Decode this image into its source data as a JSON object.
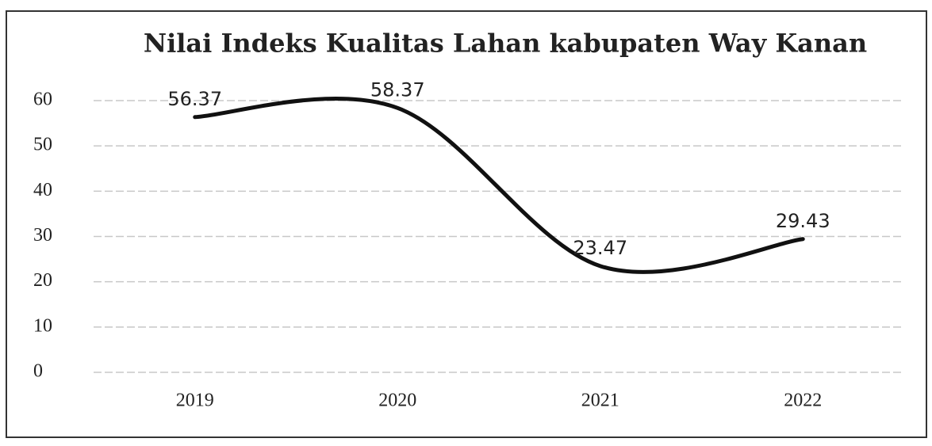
{
  "chart_data": {
    "type": "line",
    "title": "Nilai Indeks Kualitas Lahan kabupaten Way Kanan",
    "categories": [
      "2019",
      "2020",
      "2021",
      "2022"
    ],
    "values": [
      56.37,
      58.37,
      23.47,
      29.43
    ],
    "color": "#111111",
    "ylim": [
      0,
      60
    ],
    "yticks": [
      0,
      10,
      20,
      30,
      40,
      50,
      60
    ],
    "grid": true
  }
}
